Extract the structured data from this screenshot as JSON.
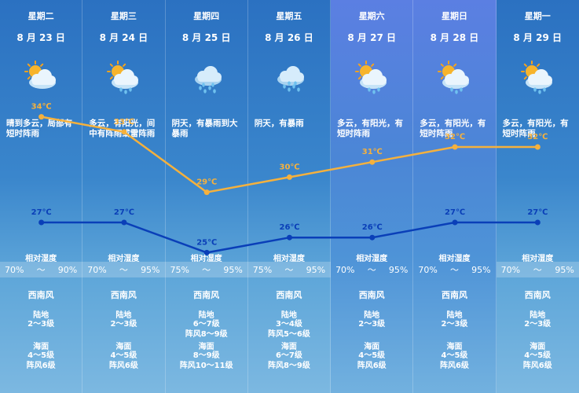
{
  "days": [
    {
      "weekday": "星期二",
      "date": "8 月 23 日",
      "icon": "sun-cloud-icon",
      "desc": "晴到多云，局部有短时阵雨",
      "rh_label": "相对湿度",
      "rh_low": "70%",
      "rh_sep": "～",
      "rh_high": "90%",
      "wind": "西南风",
      "land_label": "陆地",
      "land": [
        "2～3级"
      ],
      "sea_label": "海面",
      "sea": [
        "4～5级",
        "阵风6级"
      ],
      "highlight": false
    },
    {
      "weekday": "星期三",
      "date": "8 月 24 日",
      "icon": "sun-cloud-rain-icon",
      "desc": "多云，有阳光，间中有阵雨或雷阵雨",
      "rh_label": "相对湿度",
      "rh_low": "70%",
      "rh_sep": "～",
      "rh_high": "95%",
      "wind": "西南风",
      "land_label": "陆地",
      "land": [
        "2～3级"
      ],
      "sea_label": "海面",
      "sea": [
        "4～5级",
        "阵风6级"
      ],
      "highlight": false
    },
    {
      "weekday": "星期四",
      "date": "8 月 25 日",
      "icon": "heavy-rain-icon",
      "desc": "阴天，有暴雨到大暴雨",
      "rh_label": "相对湿度",
      "rh_low": "75%",
      "rh_sep": "～",
      "rh_high": "95%",
      "wind": "西南风",
      "land_label": "陆地",
      "land": [
        "6～7级",
        "阵风8～9级"
      ],
      "sea_label": "海面",
      "sea": [
        "8～9级",
        "阵风10～11级"
      ],
      "highlight": false
    },
    {
      "weekday": "星期五",
      "date": "8 月 26 日",
      "icon": "rain-cloud-icon",
      "desc": "阴天，有暴雨",
      "rh_label": "相对湿度",
      "rh_low": "75%",
      "rh_sep": "～",
      "rh_high": "95%",
      "wind": "西南风",
      "land_label": "陆地",
      "land": [
        "3～4级",
        "阵风5～6级"
      ],
      "sea_label": "海面",
      "sea": [
        "6～7级",
        "阵风8～9级"
      ],
      "highlight": false
    },
    {
      "weekday": "星期六",
      "date": "8 月 27 日",
      "icon": "sun-cloud-rain-icon",
      "desc": "多云，有阳光，有短时阵雨",
      "rh_label": "相对湿度",
      "rh_low": "70%",
      "rh_sep": "～",
      "rh_high": "95%",
      "wind": "西南风",
      "land_label": "陆地",
      "land": [
        "2～3级"
      ],
      "sea_label": "海面",
      "sea": [
        "4～5级",
        "阵风6级"
      ],
      "highlight": true
    },
    {
      "weekday": "星期日",
      "date": "8 月 28 日",
      "icon": "sun-cloud-rain-icon",
      "desc": "多云，有阳光，有短时阵雨",
      "rh_label": "相对湿度",
      "rh_low": "70%",
      "rh_sep": "～",
      "rh_high": "95%",
      "wind": "西南风",
      "land_label": "陆地",
      "land": [
        "2～3级"
      ],
      "sea_label": "海面",
      "sea": [
        "4～5级",
        "阵风6级"
      ],
      "highlight": true
    },
    {
      "weekday": "星期一",
      "date": "8 月 29 日",
      "icon": "sun-cloud-rain-icon",
      "desc": "多云，有阳光，有短时阵雨",
      "rh_label": "相对湿度",
      "rh_low": "70%",
      "rh_sep": "～",
      "rh_high": "95%",
      "wind": "西南风",
      "land_label": "陆地",
      "land": [
        "2～3级"
      ],
      "sea_label": "海面",
      "sea": [
        "4～5级",
        "阵风6级"
      ],
      "highlight": false
    }
  ],
  "chart_data": {
    "type": "line",
    "categories": [
      "8 月 23 日",
      "8 月 24 日",
      "8 月 25 日",
      "8 月 26 日",
      "8 月 27 日",
      "8 月 28 日",
      "8 月 29 日"
    ],
    "unit": "℃",
    "series": [
      {
        "values": [
          34,
          33,
          29,
          30,
          31,
          32,
          32
        ],
        "color": "#f5b13d"
      },
      {
        "values": [
          27,
          27,
          25,
          26,
          26,
          27,
          27
        ],
        "color": "#0a3fb8"
      }
    ]
  },
  "colors": {
    "high_line": "#f5b13d",
    "low_line": "#0a3fb8"
  }
}
